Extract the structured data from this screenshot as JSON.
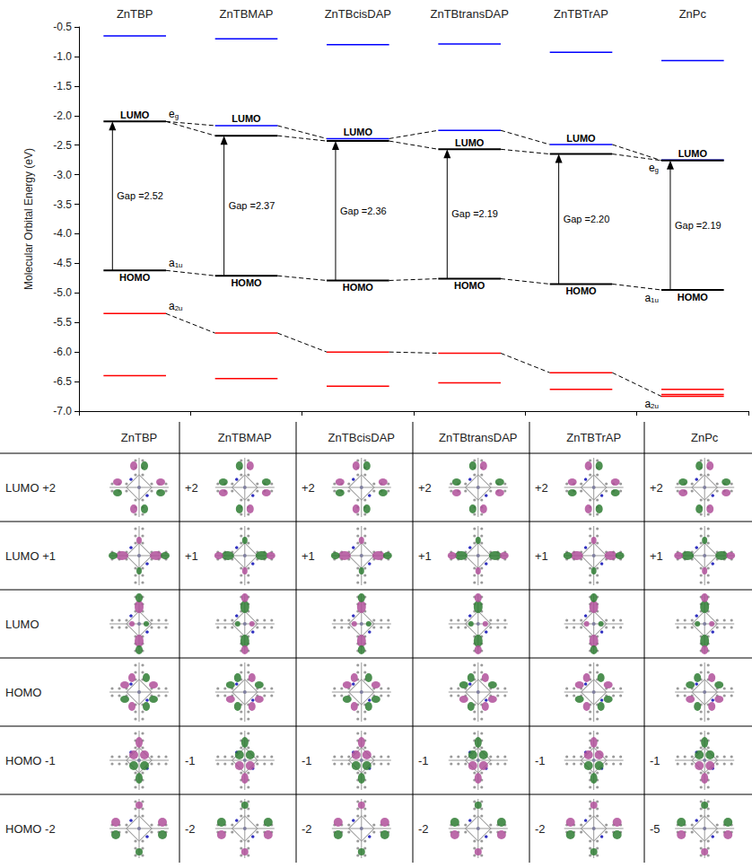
{
  "chart_data": {
    "type": "energy_level",
    "y_label": "Molecular Orbital Energy (eV)",
    "categories": [
      "ZnTBP",
      "ZnTBMAP",
      "ZnTBcisDAP",
      "ZnTBtransDAP",
      "ZnTBTrAP",
      "ZnPc"
    ],
    "ylim": [
      -7.0,
      -0.5
    ],
    "yticks": [
      -0.5,
      {
        "value": -1.0,
        "label": "-1.0"
      },
      -1.5,
      {
        "value": -2.0,
        "label": "-2.0"
      },
      -2.5,
      {
        "value": -3.0,
        "label": "-3.0"
      },
      -3.5,
      {
        "value": -4.0,
        "label": "-4.0"
      },
      -4.5,
      {
        "value": -5.0,
        "label": "-5.0"
      },
      -5.5,
      {
        "value": -6.0,
        "label": "-6.0"
      },
      -6.5,
      {
        "value": -7.0,
        "label": "-7.0"
      }
    ],
    "grid": false,
    "level_colors": {
      "frontier": "#000000",
      "occupied": "#ff0000",
      "unoccupied": "#0000ff"
    },
    "frontier_labels": {
      "lumo": "LUMO",
      "homo": "HOMO"
    },
    "lumo": [
      -2.1,
      -2.34,
      -2.43,
      -2.57,
      -2.65,
      -2.76
    ],
    "homo": [
      -4.62,
      -4.71,
      -4.79,
      -4.76,
      -4.85,
      -4.95
    ],
    "gap_labels": [
      "Gap =2.52",
      "Gap =2.37",
      "Gap =2.36",
      "Gap =2.19",
      "Gap =2.20",
      "Gap =2.19"
    ],
    "unoccupied": [
      [
        -0.65
      ],
      [
        -0.7,
        -2.17
      ],
      [
        -0.8,
        -2.39
      ],
      [
        -0.79,
        -2.25
      ],
      [
        -0.93,
        -2.49
      ],
      [
        -1.07,
        -2.75
      ]
    ],
    "occupied": [
      [
        -5.35,
        -6.4
      ],
      [
        -5.68,
        -6.45
      ],
      [
        -6.0,
        -6.58
      ],
      [
        -6.02,
        -6.52
      ],
      [
        -6.35,
        -6.63
      ],
      [
        -6.63,
        -6.72,
        -6.75
      ]
    ],
    "correlations": [
      [
        -2.1,
        -2.17,
        -2.39,
        -2.25,
        -2.49,
        -2.76
      ],
      [
        -2.1,
        -2.34,
        -2.43,
        -2.57,
        -2.65,
        -2.76
      ],
      [
        -4.62,
        -4.71,
        -4.79,
        -4.76,
        -4.85,
        -4.95
      ],
      [
        -5.35,
        -5.68,
        -6.0,
        -6.02,
        -6.35,
        -6.75
      ]
    ],
    "annotations": [
      {
        "text": "e",
        "sub": "g",
        "category": "ZnTBP",
        "y": -2.1
      },
      {
        "text": "a",
        "sub": "1u",
        "category": "ZnTBP",
        "y": -4.62
      },
      {
        "text": "a",
        "sub": "2u",
        "category": "ZnTBP",
        "y": -5.35
      },
      {
        "text": "e",
        "sub": "g",
        "category": "ZnPc",
        "y": -2.76
      },
      {
        "text": "a",
        "sub": "1u",
        "category": "ZnPc",
        "y": -4.95
      },
      {
        "text": "a",
        "sub": "2u",
        "category": "ZnPc",
        "y": -6.75
      }
    ]
  },
  "table": {
    "header": [
      "ZnTBP",
      "ZnTBMAP",
      "ZnTBcisDAP",
      "ZnTBtransDAP",
      "ZnTBTrAP",
      "ZnPc"
    ],
    "rows": [
      [
        "LUMO +2",
        "+2",
        "+2",
        "+2",
        "+2",
        "+2"
      ],
      [
        "LUMO +1",
        "+1",
        "+1",
        "+1",
        "+1",
        "+1"
      ],
      [
        "LUMO",
        null,
        null,
        null,
        null,
        null
      ],
      [
        "HOMO",
        null,
        null,
        null,
        null,
        null
      ],
      [
        "HOMO -1",
        "-1",
        "-1",
        "-1",
        "-1",
        "-1"
      ],
      [
        "HOMO -2",
        "-2",
        "-2",
        "-2",
        "-2",
        "-5"
      ]
    ]
  }
}
